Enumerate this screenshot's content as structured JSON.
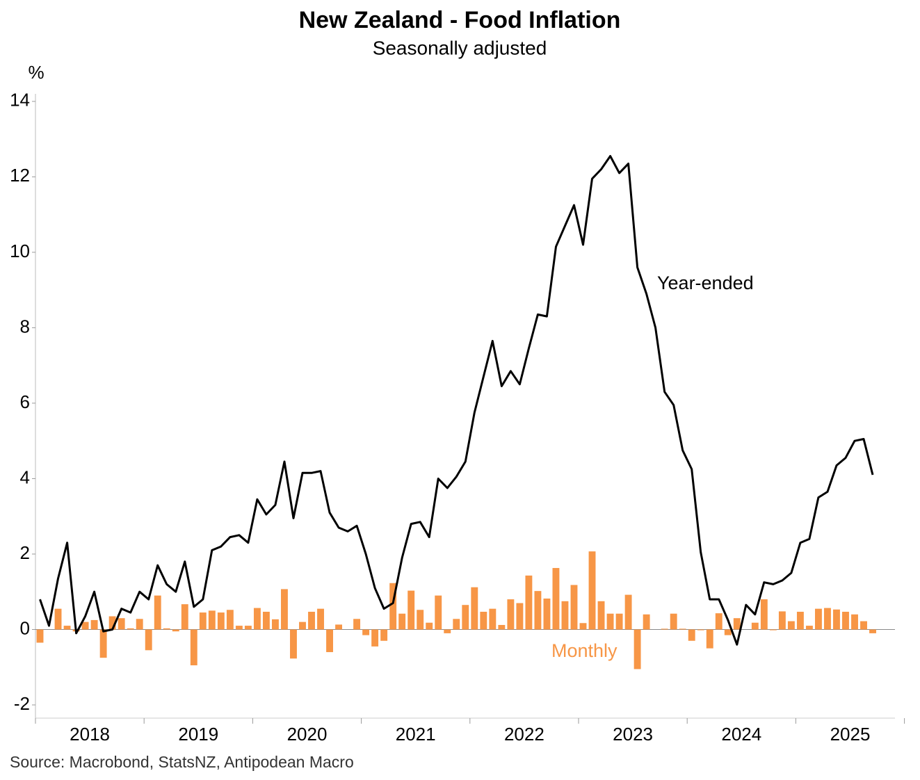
{
  "chart_data": {
    "type": "bar",
    "title": "New Zealand - Food Inflation",
    "subtitle": "Seasonally adjusted",
    "y_label": "%",
    "source": "Source: Macrobond, StatsNZ, Antipodean Macro",
    "categories": [
      null,
      null,
      null,
      null,
      null,
      null,
      "2018",
      null,
      null,
      null,
      null,
      null,
      null,
      null,
      null,
      null,
      null,
      null,
      "2019",
      null,
      null,
      null,
      null,
      null,
      null,
      null,
      null,
      null,
      null,
      null,
      "2020",
      null,
      null,
      null,
      null,
      null,
      null,
      null,
      null,
      null,
      null,
      null,
      "2021",
      null,
      null,
      null,
      null,
      null,
      null,
      null,
      null,
      null,
      null,
      null,
      "2022",
      null,
      null,
      null,
      null,
      null,
      null,
      null,
      null,
      null,
      null,
      null,
      "2023",
      null,
      null,
      null,
      null,
      null,
      null,
      null,
      null,
      null,
      null,
      null,
      "2024",
      null,
      null,
      null,
      null,
      null,
      null,
      null,
      null,
      null,
      null,
      null,
      "2025",
      null,
      null
    ],
    "series": [
      {
        "name": "Monthly",
        "type": "bar",
        "color": "#f79646",
        "values": [
          -0.35,
          0.0,
          0.55,
          0.1,
          -0.05,
          0.2,
          0.25,
          -0.75,
          0.35,
          0.3,
          0.03,
          0.28,
          -0.55,
          0.9,
          0.03,
          -0.05,
          0.67,
          -0.95,
          0.45,
          0.5,
          0.45,
          0.52,
          0.1,
          0.1,
          0.57,
          0.47,
          0.27,
          1.07,
          -0.77,
          0.2,
          0.47,
          0.55,
          -0.6,
          0.13,
          0.0,
          0.28,
          -0.15,
          -0.45,
          -0.3,
          1.23,
          0.42,
          1.03,
          0.52,
          0.18,
          0.9,
          -0.1,
          0.28,
          0.65,
          1.12,
          0.47,
          0.55,
          0.12,
          0.8,
          0.7,
          1.43,
          1.02,
          0.82,
          1.63,
          0.75,
          1.18,
          0.17,
          2.07,
          0.75,
          0.42,
          0.42,
          0.92,
          -1.05,
          0.4,
          0.0,
          0.02,
          0.42,
          0.02,
          -0.3,
          -0.02,
          -0.5,
          0.43,
          -0.15,
          0.3,
          0.0,
          0.18,
          0.8,
          -0.02,
          0.48,
          0.22,
          0.47,
          0.1,
          0.55,
          0.57,
          0.53,
          0.47,
          0.4,
          0.22,
          -0.1
        ]
      },
      {
        "name": "Year-ended",
        "type": "line",
        "color": "#000000",
        "values": [
          0.8,
          0.1,
          1.35,
          2.3,
          -0.1,
          0.35,
          1.0,
          -0.05,
          0.0,
          0.55,
          0.45,
          1.0,
          0.8,
          1.7,
          1.2,
          1.0,
          1.8,
          0.6,
          0.8,
          2.1,
          2.2,
          2.45,
          2.5,
          2.3,
          3.45,
          3.05,
          3.3,
          4.45,
          2.95,
          4.15,
          4.15,
          4.2,
          3.1,
          2.7,
          2.6,
          2.75,
          2.0,
          1.1,
          0.55,
          0.7,
          1.9,
          2.8,
          2.85,
          2.45,
          4.0,
          3.75,
          4.05,
          4.45,
          5.75,
          6.7,
          7.65,
          6.45,
          6.85,
          6.5,
          7.45,
          8.35,
          8.3,
          10.15,
          10.7,
          11.25,
          10.2,
          11.95,
          12.2,
          12.55,
          12.1,
          12.35,
          9.6,
          8.9,
          8.0,
          6.3,
          5.95,
          4.75,
          4.25,
          2.05,
          0.8,
          0.8,
          0.25,
          -0.4,
          0.65,
          0.4,
          1.25,
          1.2,
          1.3,
          1.5,
          2.3,
          2.4,
          3.5,
          3.65,
          4.35,
          4.55,
          5.0,
          5.05,
          4.1
        ]
      }
    ],
    "ylim": [
      -2.35,
      14.2
    ],
    "yticks": [
      -2,
      0,
      2,
      4,
      6,
      8,
      10,
      12,
      14
    ]
  }
}
